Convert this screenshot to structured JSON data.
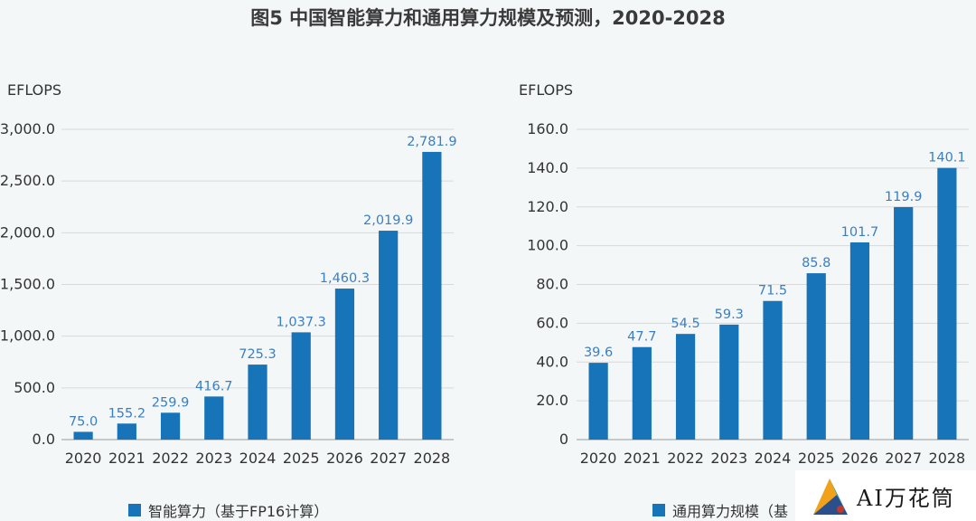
{
  "title": "图5 中国智能算力和通用算力规模及预测，2020-2028",
  "colors": {
    "bar": "#1874b8",
    "label": "#3b7fc0",
    "axis": "#333333",
    "grid": "#d9d9d9"
  },
  "chart_data": [
    {
      "type": "bar",
      "unit": "EFLOPS",
      "categories": [
        "2020",
        "2021",
        "2022",
        "2023",
        "2024",
        "2025",
        "2026",
        "2027",
        "2028"
      ],
      "values": [
        75.0,
        155.2,
        259.9,
        416.7,
        725.3,
        1037.3,
        1460.3,
        2019.9,
        2781.9
      ],
      "value_labels": [
        "75.0",
        "155.2",
        "259.9",
        "416.7",
        "725.3",
        "1,037.3",
        "1,460.3",
        "2,019.9",
        "2,781.9"
      ],
      "yticks": [
        0,
        500,
        1000,
        1500,
        2000,
        2500,
        3000
      ],
      "ytick_labels": [
        "0.0",
        "500.0",
        "1,000.0",
        "1,500.0",
        "2,000.0",
        "2,500.0",
        "3,000.0"
      ],
      "ylim": [
        0,
        3000
      ],
      "legend": "智能算力（基于FP16计算）",
      "grid": true
    },
    {
      "type": "bar",
      "unit": "EFLOPS",
      "categories": [
        "2020",
        "2021",
        "2022",
        "2023",
        "2024",
        "2025",
        "2026",
        "2027",
        "2028"
      ],
      "values": [
        39.6,
        47.7,
        54.5,
        59.3,
        71.5,
        85.8,
        101.7,
        119.9,
        140.1
      ],
      "value_labels": [
        "39.6",
        "47.7",
        "54.5",
        "59.3",
        "71.5",
        "85.8",
        "101.7",
        "119.9",
        "140.1"
      ],
      "yticks": [
        0,
        20,
        40,
        60,
        80,
        100,
        120,
        140,
        160
      ],
      "ytick_labels": [
        "0",
        "20.0",
        "40.0",
        "60.0",
        "80.0",
        "100.0",
        "120.0",
        "140.0",
        "160.0"
      ],
      "ylim": [
        0,
        160
      ],
      "legend": "通用算力规模（基",
      "grid": true
    }
  ],
  "logo": {
    "text": "AI万花筒"
  }
}
